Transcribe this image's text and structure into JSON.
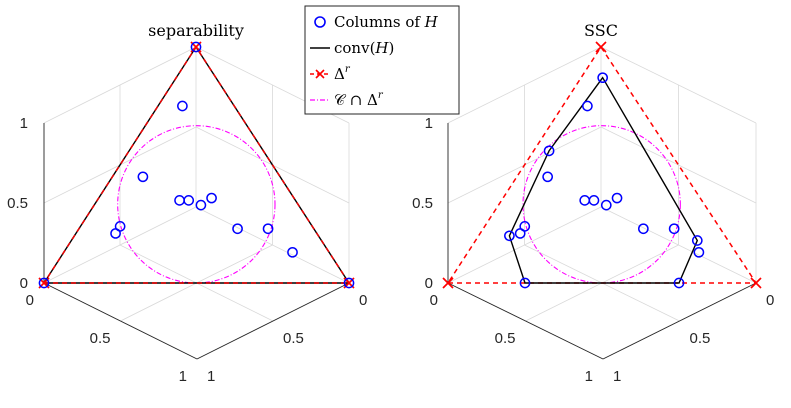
{
  "chart_data": [
    {
      "type": "scatter",
      "title": "separability",
      "projection": "3d-simplex-view",
      "axes": {
        "z_ticks": [
          "0",
          "0.5",
          "1"
        ],
        "x_ticks": [
          "0",
          "0.5",
          "1"
        ],
        "y_ticks": [
          "0",
          "0.5",
          "1"
        ],
        "range": [
          0,
          1
        ],
        "grid": true
      },
      "series": [
        {
          "name": "Columns of H",
          "marker": "circle",
          "color": "#0000ff",
          "points": [
            [
              1,
              0,
              0
            ],
            [
              0,
              1,
              0
            ],
            [
              0,
              0,
              1
            ],
            [
              0.17,
              0.08,
              0.75
            ],
            [
              0.45,
              0.1,
              0.45
            ],
            [
              0.38,
              0.27,
              0.35
            ],
            [
              0.32,
              0.35,
              0.33
            ],
            [
              0.35,
              0.3,
              0.35
            ],
            [
              0.27,
              0.37,
              0.36
            ],
            [
              0.25,
              0.52,
              0.23
            ],
            [
              0.66,
              0.13,
              0.21
            ],
            [
              0.63,
              0.13,
              0.24
            ],
            [
              0.15,
              0.62,
              0.23
            ],
            [
              0.12,
              0.75,
              0.13
            ]
          ]
        },
        {
          "name": "conv(H)",
          "style": "solid",
          "color": "#000000",
          "vertices": [
            [
              1,
              0,
              0
            ],
            [
              0,
              1,
              0
            ],
            [
              0,
              0,
              1
            ]
          ]
        },
        {
          "name": "Δ^r",
          "style": "dashed",
          "marker": "x",
          "color": "#ff0000",
          "vertices": [
            [
              1,
              0,
              0
            ],
            [
              0,
              1,
              0
            ],
            [
              0,
              0,
              1
            ]
          ]
        },
        {
          "name": "C ∩ Δ^r",
          "style": "dash-dot",
          "color": "#ff00ff",
          "shape": "inscribed circle"
        }
      ]
    },
    {
      "type": "scatter",
      "title": "SSC",
      "projection": "3d-simplex-view",
      "axes": {
        "z_ticks": [
          "0",
          "0.5",
          "1"
        ],
        "x_ticks": [
          "0",
          "0.5",
          "1"
        ],
        "y_ticks": [
          "0",
          "0.5",
          "1"
        ],
        "range": [
          0,
          1
        ],
        "grid": true
      },
      "series": [
        {
          "name": "Columns of H",
          "marker": "circle",
          "color": "#0000ff",
          "points": [
            [
              0.06,
              0.07,
              0.87
            ],
            [
              0.39,
              0.05,
              0.56
            ],
            [
              0.7,
              0.1,
              0.2
            ],
            [
              0.75,
              0.25,
              0
            ],
            [
              0.25,
              0.75,
              0
            ],
            [
              0.1,
              0.72,
              0.18
            ],
            [
              0.17,
              0.08,
              0.75
            ],
            [
              0.45,
              0.1,
              0.45
            ],
            [
              0.38,
              0.27,
              0.35
            ],
            [
              0.32,
              0.35,
              0.33
            ],
            [
              0.35,
              0.3,
              0.35
            ],
            [
              0.27,
              0.37,
              0.36
            ],
            [
              0.25,
              0.52,
              0.23
            ],
            [
              0.66,
              0.13,
              0.21
            ],
            [
              0.63,
              0.13,
              0.24
            ],
            [
              0.15,
              0.62,
              0.23
            ],
            [
              0.12,
              0.75,
              0.13
            ]
          ]
        },
        {
          "name": "conv(H)",
          "style": "solid",
          "color": "#000000",
          "vertices": [
            [
              0.06,
              0.07,
              0.87
            ],
            [
              0.1,
              0.72,
              0.18
            ],
            [
              0.25,
              0.75,
              0
            ],
            [
              0.75,
              0.25,
              0
            ],
            [
              0.7,
              0.1,
              0.2
            ],
            [
              0.39,
              0.05,
              0.56
            ]
          ]
        },
        {
          "name": "Δ^r",
          "style": "dashed",
          "marker": "x",
          "color": "#ff0000",
          "vertices": [
            [
              1,
              0,
              0
            ],
            [
              0,
              1,
              0
            ],
            [
              0,
              0,
              1
            ]
          ]
        },
        {
          "name": "C ∩ Δ^r",
          "style": "dash-dot",
          "color": "#ff00ff",
          "shape": "inscribed circle"
        }
      ]
    }
  ],
  "legend": {
    "placement": "top-center",
    "entries": [
      {
        "label": "Columns of ",
        "label_var": "H",
        "glyph": "blue-circle"
      },
      {
        "label": "conv(",
        "label_var": "H",
        "label_end": ")",
        "glyph": "black-line"
      },
      {
        "label": "Δ",
        "label_sup": "r",
        "glyph": "red-dashed-x"
      },
      {
        "label": "𝒞 ∩ Δ",
        "label_sup": "r",
        "glyph": "magenta-dashdot"
      }
    ]
  },
  "colors": {
    "points": "#0000ff",
    "conv": "#000000",
    "simplex": "#ff0000",
    "cone": "#ff00ff",
    "grid": "#d9d9d9",
    "axis": "#262626"
  }
}
